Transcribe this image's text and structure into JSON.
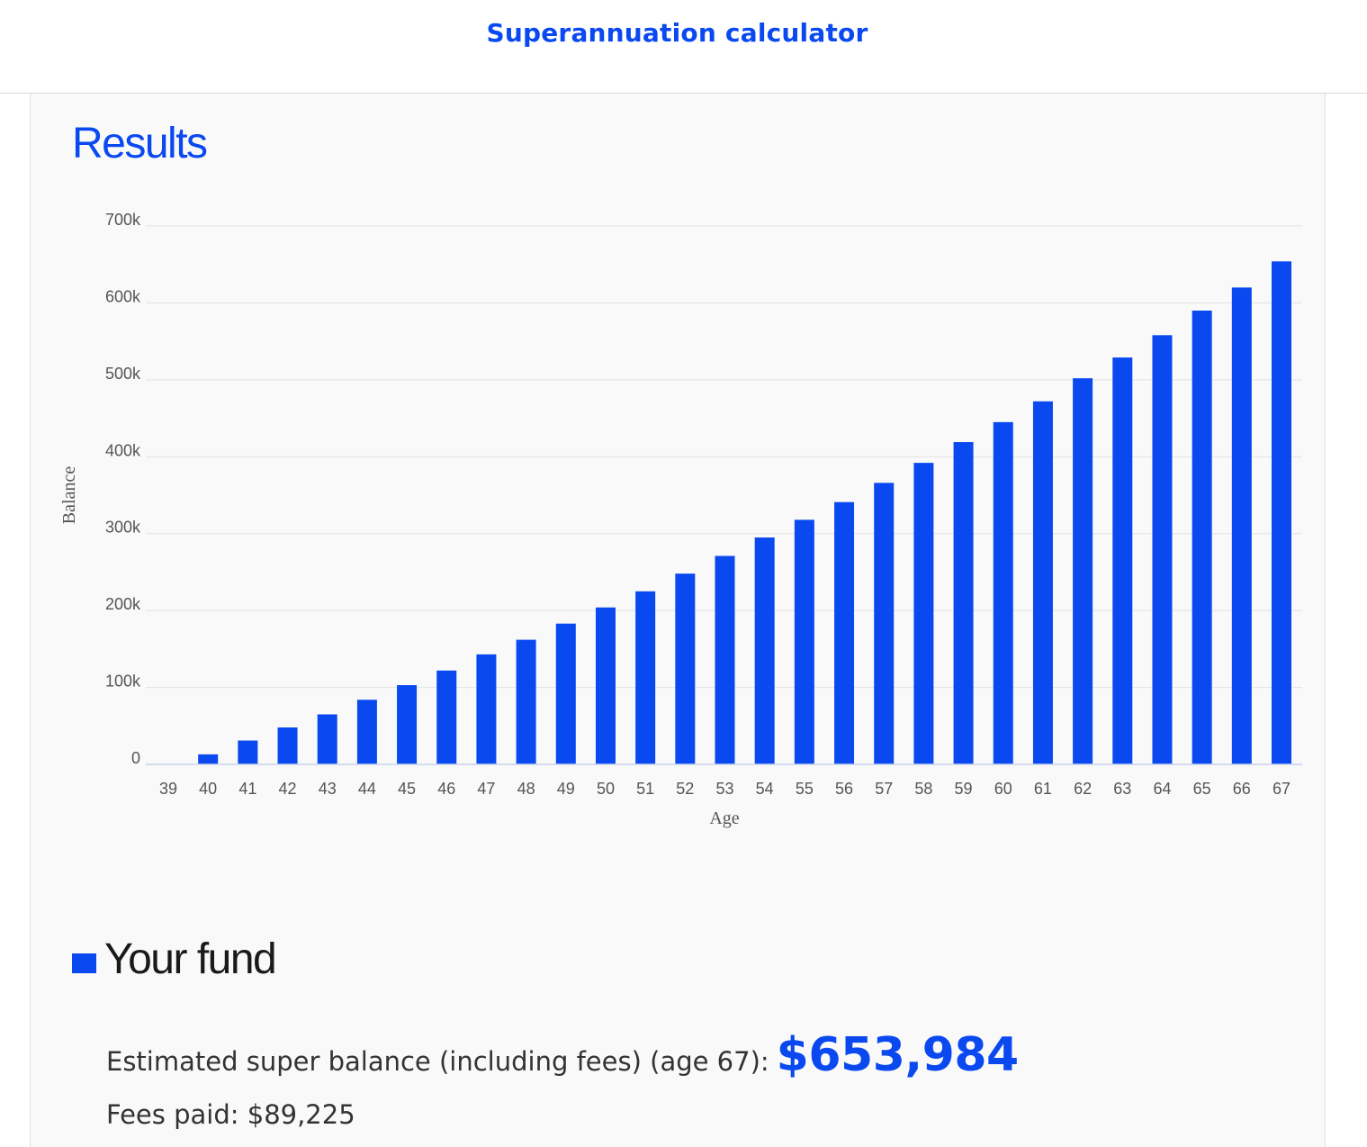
{
  "header": {
    "title": "Superannuation calculator"
  },
  "results": {
    "heading": "Results"
  },
  "colors": {
    "brand": "#0a49f0",
    "bar": "#0a49f0",
    "grid": "#e3e3e3"
  },
  "chart_data": {
    "type": "bar",
    "xlabel": "Age",
    "ylabel": "Balance",
    "ylim": [
      0,
      700000
    ],
    "y_ticks": [
      {
        "value": 0,
        "label": "0"
      },
      {
        "value": 100000,
        "label": "100k"
      },
      {
        "value": 200000,
        "label": "200k"
      },
      {
        "value": 300000,
        "label": "300k"
      },
      {
        "value": 400000,
        "label": "400k"
      },
      {
        "value": 500000,
        "label": "500k"
      },
      {
        "value": 600000,
        "label": "600k"
      },
      {
        "value": 700000,
        "label": "700k"
      }
    ],
    "grid": true,
    "legend": "none",
    "categories": [
      "39",
      "40",
      "41",
      "42",
      "43",
      "44",
      "45",
      "46",
      "47",
      "48",
      "49",
      "50",
      "51",
      "52",
      "53",
      "54",
      "55",
      "56",
      "57",
      "58",
      "59",
      "60",
      "61",
      "62",
      "63",
      "64",
      "65",
      "66",
      "67"
    ],
    "values": [
      0,
      13000,
      31000,
      48000,
      65000,
      84000,
      103000,
      122000,
      143000,
      162000,
      183000,
      204000,
      225000,
      248000,
      271000,
      295000,
      318000,
      341000,
      366000,
      392000,
      419000,
      445000,
      472000,
      502000,
      529000,
      558000,
      590000,
      620000,
      653984
    ]
  },
  "fund": {
    "legend_label": "Your fund",
    "estimate_label": "Estimated super balance (including fees) (age 67):",
    "estimate_value": "$653,984",
    "fees_text": "Fees paid: $89,225"
  }
}
